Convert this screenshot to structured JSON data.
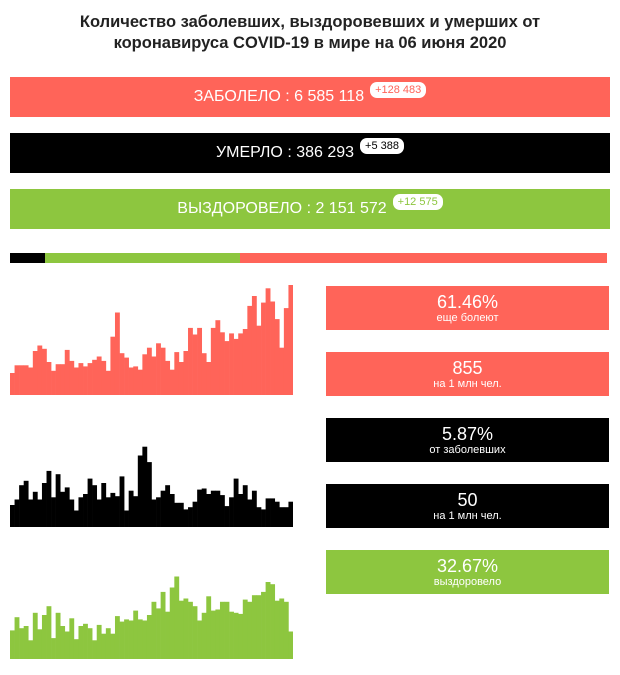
{
  "title": {
    "line1": "Количество заболевших, выздоровевших и умерших от",
    "line2": "коронавируса COVID-19 в мире на 06 июня 2020"
  },
  "colors": {
    "red": "#ff6459",
    "black": "#000000",
    "green": "#8dc63f"
  },
  "bars": {
    "infected": {
      "label": "ЗАБОЛЕЛО : 6 585 118",
      "delta": "+128 483"
    },
    "deaths": {
      "label": "УМЕРЛО : 386 293",
      "delta": "+5 388"
    },
    "recovered": {
      "label": "ВЫЗДОРОВЕЛО : 2 151 572",
      "delta": "+12 575"
    }
  },
  "progress_shares": {
    "deaths": 5.87,
    "recovered": 32.67,
    "active": 61.46
  },
  "stats": {
    "active_pct": {
      "value": "61.46%",
      "caption": "еще болеют"
    },
    "cases_per_million": {
      "value": "855",
      "caption": "на 1 млн чел."
    },
    "death_rate": {
      "value": "5.87%",
      "caption": "от заболевших"
    },
    "deaths_per_million": {
      "value": "50",
      "caption": "на 1 млн чел."
    },
    "recovered_pct": {
      "value": "32.67%",
      "caption": "выздоровело"
    }
  },
  "chart_data": [
    {
      "type": "bar",
      "series_color": "#ff6459",
      "values": [
        20,
        27,
        27,
        27,
        25,
        40,
        45,
        42,
        30,
        22,
        28,
        28,
        41,
        31,
        25,
        29,
        26,
        29,
        32,
        35,
        31,
        22,
        53,
        75,
        38,
        34,
        25,
        26,
        23,
        37,
        43,
        35,
        47,
        43,
        31,
        23,
        39,
        30,
        40,
        61,
        55,
        61,
        38,
        30,
        61,
        68,
        57,
        49,
        56,
        51,
        56,
        60,
        81,
        90,
        63,
        84,
        97,
        85,
        69,
        43,
        79,
        100
      ]
    },
    {
      "type": "bar",
      "series_color": "#000000",
      "values": [
        20,
        25,
        38,
        42,
        25,
        32,
        25,
        40,
        51,
        27,
        48,
        32,
        36,
        25,
        15,
        27,
        30,
        44,
        38,
        25,
        40,
        27,
        31,
        28,
        46,
        15,
        33,
        28,
        65,
        73,
        59,
        25,
        27,
        33,
        38,
        30,
        22,
        22,
        16,
        18,
        23,
        34,
        35,
        30,
        33,
        33,
        29,
        19,
        27,
        44,
        30,
        38,
        25,
        33,
        18,
        16,
        26,
        26,
        23,
        18,
        18,
        23
      ]
    },
    {
      "type": "bar",
      "series_color": "#8dc63f",
      "values": [
        26,
        38,
        28,
        30,
        17,
        42,
        27,
        40,
        48,
        19,
        42,
        30,
        25,
        37,
        18,
        30,
        32,
        28,
        17,
        31,
        23,
        28,
        23,
        39,
        34,
        36,
        35,
        44,
        36,
        35,
        40,
        52,
        46,
        61,
        43,
        65,
        75,
        53,
        55,
        52,
        48,
        35,
        42,
        57,
        44,
        45,
        52,
        52,
        43,
        42,
        41,
        54,
        52,
        58,
        58,
        61,
        70,
        68,
        53,
        55,
        52,
        25
      ]
    }
  ]
}
